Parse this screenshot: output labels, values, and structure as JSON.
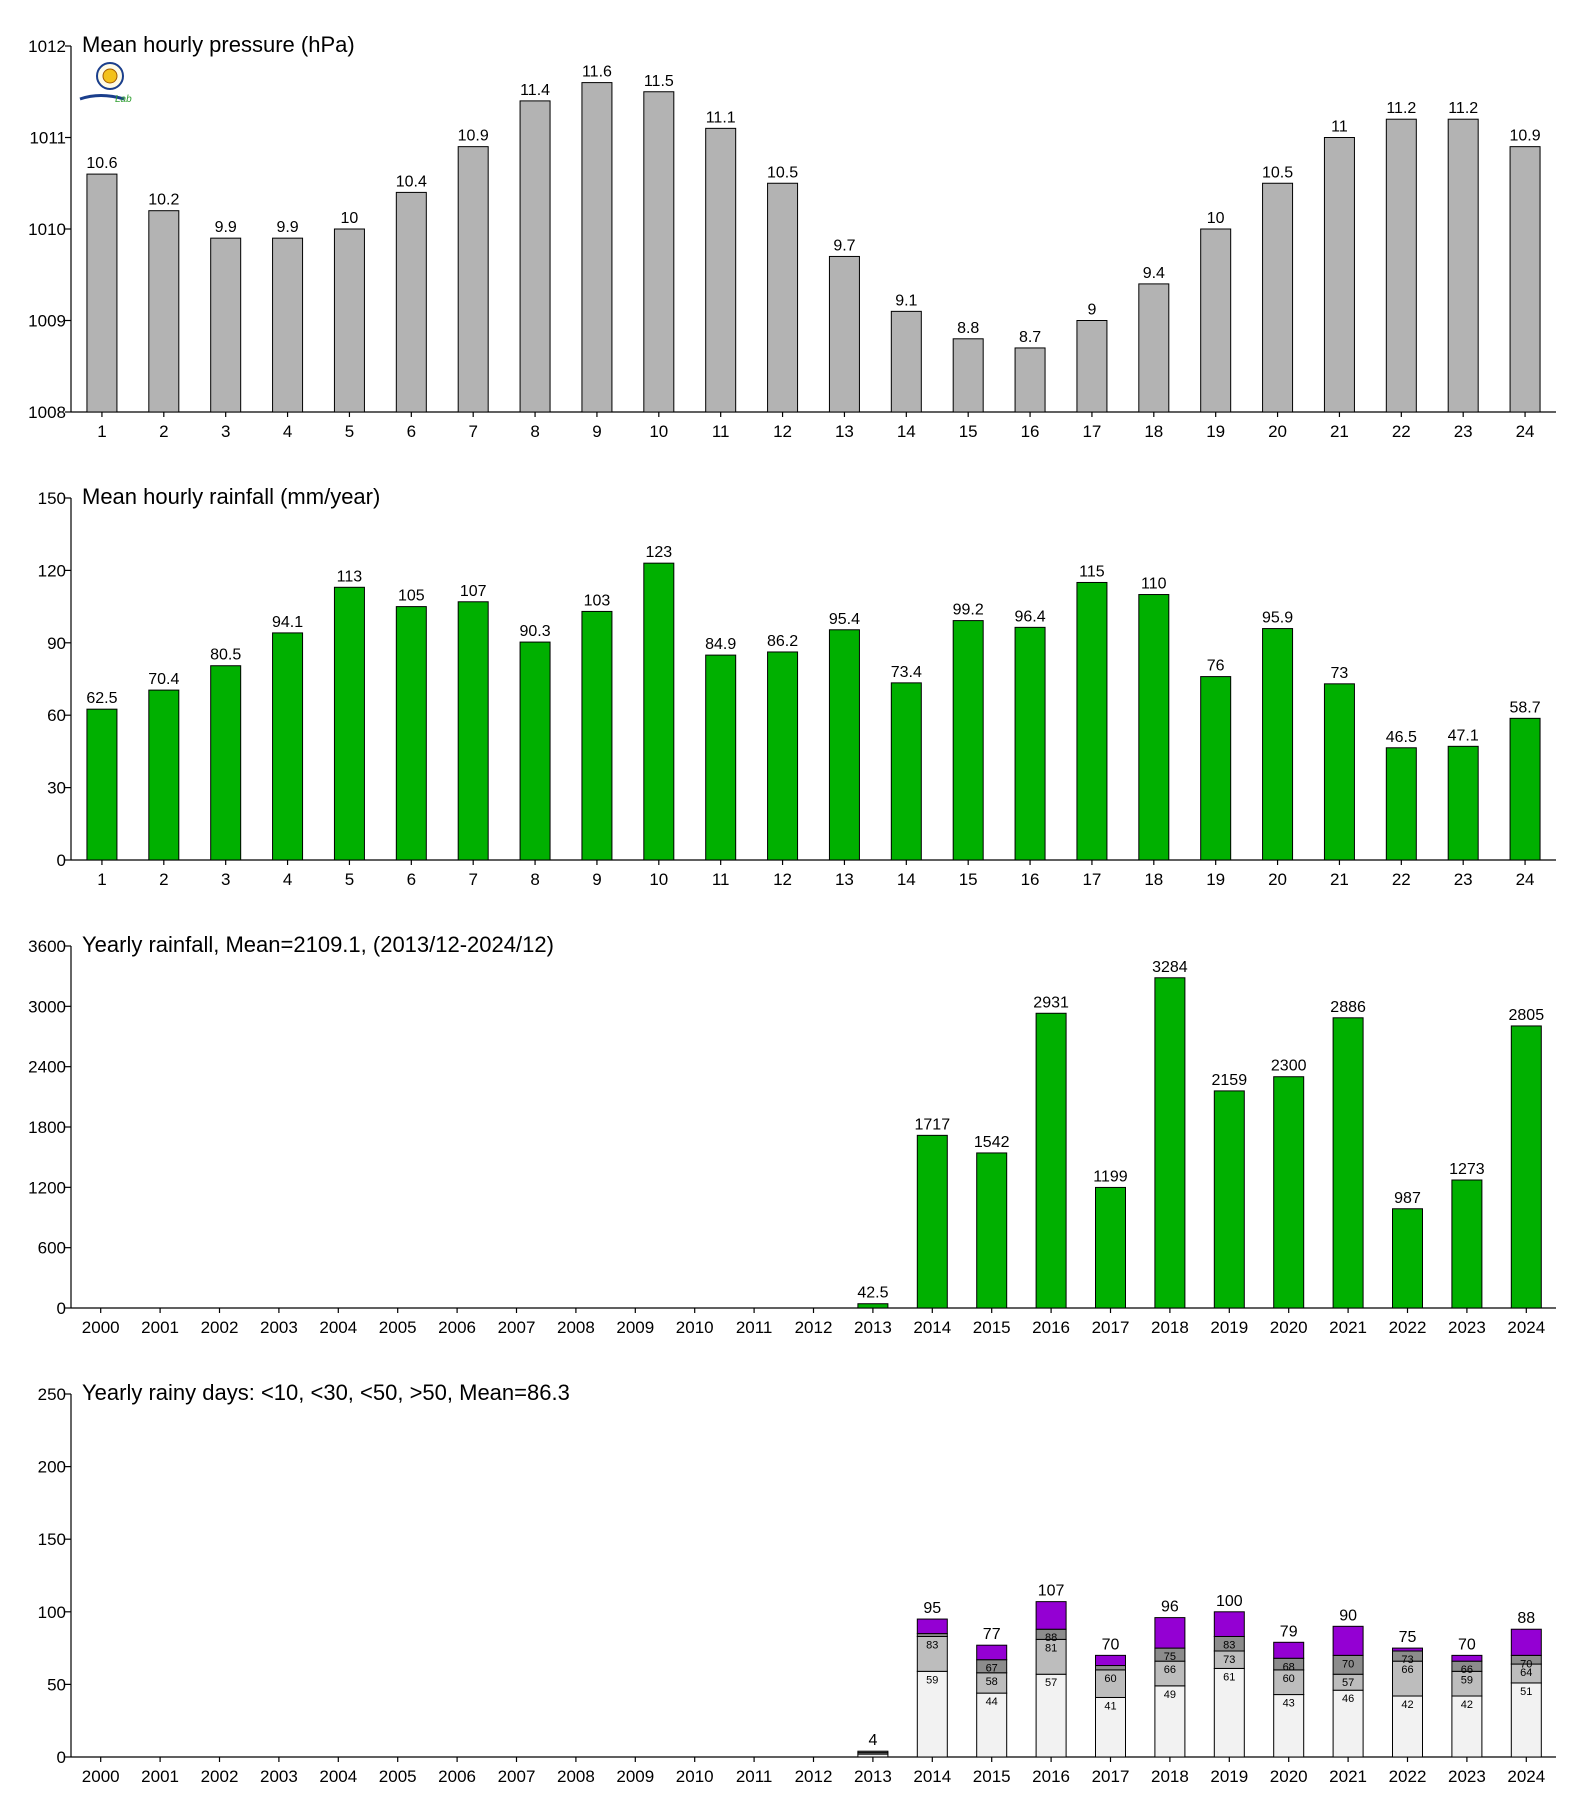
{
  "colors": {
    "pressure_bar": "#b3b3b3",
    "rain_bar": "#00b000",
    "days_lt10": "#f2f2f2",
    "days_lt30": "#bdbdbd",
    "days_lt50": "#8c8c8c",
    "days_gt50": "#9400d3"
  },
  "icons": [
    "logo-icon"
  ],
  "logo_text": "Lab",
  "chart_data": [
    {
      "type": "bar",
      "title": "Mean hourly pressure (hPa)",
      "categories": [
        "1",
        "2",
        "3",
        "4",
        "5",
        "6",
        "7",
        "8",
        "9",
        "10",
        "11",
        "12",
        "13",
        "14",
        "15",
        "16",
        "17",
        "18",
        "19",
        "20",
        "21",
        "22",
        "23",
        "24"
      ],
      "values": [
        1010.6,
        1010.2,
        1009.9,
        1009.9,
        1010,
        1010.4,
        1010.9,
        1011.4,
        1011.6,
        1011.5,
        1011.1,
        1010.5,
        1009.7,
        1009.1,
        1008.8,
        1008.7,
        1009,
        1009.4,
        1010,
        1010.5,
        1011,
        1011.2,
        1011.2,
        1010.9
      ],
      "labels": [
        "10.6",
        "10.2",
        "9.9",
        "9.9",
        "10",
        "10.4",
        "10.9",
        "11.4",
        "11.6",
        "11.5",
        "11.1",
        "10.5",
        "9.7",
        "9.1",
        "8.8",
        "8.7",
        "9",
        "9.4",
        "10",
        "10.5",
        "11",
        "11.2",
        "11.2",
        "10.9"
      ],
      "ylim": [
        1008,
        1012
      ],
      "yticks": [
        "1008",
        "1009",
        "1010",
        "1011",
        "1012"
      ],
      "xlabel": "",
      "ylabel": "",
      "grid": false
    },
    {
      "type": "bar",
      "title": "Mean hourly rainfall (mm/year)",
      "categories": [
        "1",
        "2",
        "3",
        "4",
        "5",
        "6",
        "7",
        "8",
        "9",
        "10",
        "11",
        "12",
        "13",
        "14",
        "15",
        "16",
        "17",
        "18",
        "19",
        "20",
        "21",
        "22",
        "23",
        "24"
      ],
      "values": [
        62.5,
        70.4,
        80.5,
        94.1,
        113,
        105,
        107,
        90.3,
        103,
        123,
        84.9,
        86.2,
        95.4,
        73.4,
        99.2,
        96.4,
        115,
        110,
        76,
        95.9,
        73,
        46.5,
        47.1,
        58.7
      ],
      "labels": [
        "62.5",
        "70.4",
        "80.5",
        "94.1",
        "113",
        "105",
        "107",
        "90.3",
        "103",
        "123",
        "84.9",
        "86.2",
        "95.4",
        "73.4",
        "99.2",
        "96.4",
        "115",
        "110",
        "76",
        "95.9",
        "73",
        "46.5",
        "47.1",
        "58.7"
      ],
      "ylim": [
        0,
        150
      ],
      "yticks": [
        "0",
        "30",
        "60",
        "90",
        "120",
        "150"
      ],
      "xlabel": "",
      "ylabel": "",
      "grid": false
    },
    {
      "type": "bar",
      "title": "Yearly rainfall, Mean=2109.1, (2013/12-2024/12)",
      "categories": [
        "2000",
        "2001",
        "2002",
        "2003",
        "2004",
        "2005",
        "2006",
        "2007",
        "2008",
        "2009",
        "2010",
        "2011",
        "2012",
        "2013",
        "2014",
        "2015",
        "2016",
        "2017",
        "2018",
        "2019",
        "2020",
        "2021",
        "2022",
        "2023",
        "2024"
      ],
      "values": [
        null,
        null,
        null,
        null,
        null,
        null,
        null,
        null,
        null,
        null,
        null,
        null,
        null,
        42.5,
        1717,
        1542,
        2931,
        1199,
        3284,
        2159,
        2300,
        2886,
        987,
        1273,
        2805
      ],
      "labels": [
        "",
        "",
        "",
        "",
        "",
        "",
        "",
        "",
        "",
        "",
        "",
        "",
        "",
        "42.5",
        "1717",
        "1542",
        "2931",
        "1199",
        "3284",
        "2159",
        "2300",
        "2886",
        "987",
        "1273",
        "2805"
      ],
      "ylim": [
        0,
        3600
      ],
      "yticks": [
        "0",
        "600",
        "1200",
        "1800",
        "2400",
        "3000",
        "3600"
      ],
      "xlabel": "",
      "ylabel": "",
      "grid": false
    },
    {
      "type": "bar",
      "stacked": true,
      "title": "Yearly rainy days: <10, <30, <50, >50, Mean=86.3",
      "categories": [
        "2000",
        "2001",
        "2002",
        "2003",
        "2004",
        "2005",
        "2006",
        "2007",
        "2008",
        "2009",
        "2010",
        "2011",
        "2012",
        "2013",
        "2014",
        "2015",
        "2016",
        "2017",
        "2018",
        "2019",
        "2020",
        "2021",
        "2022",
        "2023",
        "2024"
      ],
      "cumulative": {
        "lt10": [
          null,
          null,
          null,
          null,
          null,
          null,
          null,
          null,
          null,
          null,
          null,
          null,
          null,
          2,
          59,
          44,
          57,
          41,
          49,
          61,
          43,
          46,
          42,
          42,
          51
        ],
        "lt30": [
          null,
          null,
          null,
          null,
          null,
          null,
          null,
          null,
          null,
          null,
          null,
          null,
          null,
          3,
          83,
          58,
          81,
          60,
          66,
          73,
          60,
          57,
          66,
          59,
          64
        ],
        "lt50": [
          null,
          null,
          null,
          null,
          null,
          null,
          null,
          null,
          null,
          null,
          null,
          null,
          null,
          4,
          85,
          67,
          88,
          63,
          75,
          83,
          68,
          70,
          73,
          66,
          70
        ],
        "total": [
          null,
          null,
          null,
          null,
          null,
          null,
          null,
          null,
          null,
          null,
          null,
          null,
          null,
          4,
          95,
          77,
          107,
          70,
          96,
          100,
          79,
          90,
          75,
          70,
          88
        ]
      },
      "segment_labels": {
        "lt10": [
          "",
          "",
          "",
          "",
          "",
          "",
          "",
          "",
          "",
          "",
          "",
          "",
          "",
          "",
          "59",
          "44",
          "57",
          "41",
          "49",
          "61",
          "43",
          "46",
          "42",
          "42",
          "51"
        ],
        "lt30": [
          "",
          "",
          "",
          "",
          "",
          "",
          "",
          "",
          "",
          "",
          "",
          "",
          "",
          "",
          "83",
          "58",
          "81",
          "60",
          "66",
          "73",
          "60",
          "57",
          "66",
          "59",
          "64"
        ],
        "lt50": [
          "",
          "",
          "",
          "",
          "",
          "",
          "",
          "",
          "",
          "",
          "",
          "",
          "",
          "",
          "",
          "67",
          "88",
          "",
          "75",
          "83",
          "68",
          "70",
          "73",
          "66",
          "70"
        ],
        "total": [
          "",
          "",
          "",
          "",
          "",
          "",
          "",
          "",
          "",
          "",
          "",
          "",
          "",
          "4",
          "95",
          "77",
          "107",
          "70",
          "96",
          "100",
          "79",
          "90",
          "75",
          "70",
          "88"
        ]
      },
      "ylim": [
        0,
        250
      ],
      "yticks": [
        "0",
        "50",
        "100",
        "150",
        "200",
        "250"
      ],
      "xlabel": "",
      "ylabel": "",
      "grid": false
    }
  ]
}
